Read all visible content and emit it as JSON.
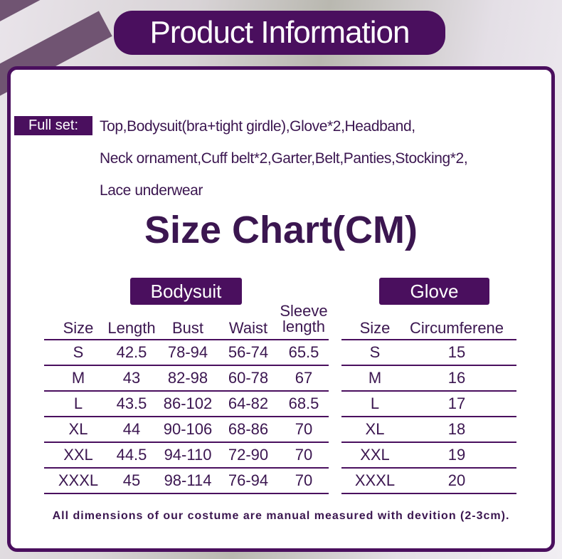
{
  "header": {
    "title": "Product Information"
  },
  "full_set": {
    "label": "Full set:",
    "lines": [
      "Top,Bodysuit(bra+tight girdle),Glove*2,Headband,",
      "Neck ornament,Cuff belt*2,Garter,Belt,Panties,Stocking*2,",
      "Lace underwear"
    ]
  },
  "size_chart_title": "Size Chart(CM)",
  "bodysuit": {
    "label": "Bodysuit",
    "headers": [
      "Size",
      "Length",
      "Bust",
      "Waist",
      "Sleeve",
      "length"
    ],
    "rows": [
      [
        "S",
        "42.5",
        "78-94",
        "56-74",
        "65.5"
      ],
      [
        "M",
        "43",
        "82-98",
        "60-78",
        "67"
      ],
      [
        "L",
        "43.5",
        "86-102",
        "64-82",
        "68.5"
      ],
      [
        "XL",
        "44",
        "90-106",
        "68-86",
        "70"
      ],
      [
        "XXL",
        "44.5",
        "94-110",
        "72-90",
        "70"
      ],
      [
        "XXXL",
        "45",
        "98-114",
        "76-94",
        "70"
      ]
    ]
  },
  "glove": {
    "label": "Glove",
    "headers": [
      "Size",
      "Circumferene"
    ],
    "rows": [
      [
        "S",
        "15"
      ],
      [
        "M",
        "16"
      ],
      [
        "L",
        "17"
      ],
      [
        "XL",
        "18"
      ],
      [
        "XXL",
        "19"
      ],
      [
        "XXXL",
        "20"
      ]
    ]
  },
  "footer": "All dimensions of our costume are manual measured with devition (2-3cm).",
  "colors": {
    "accent": "#4a0f5e",
    "text": "#3b1650"
  }
}
